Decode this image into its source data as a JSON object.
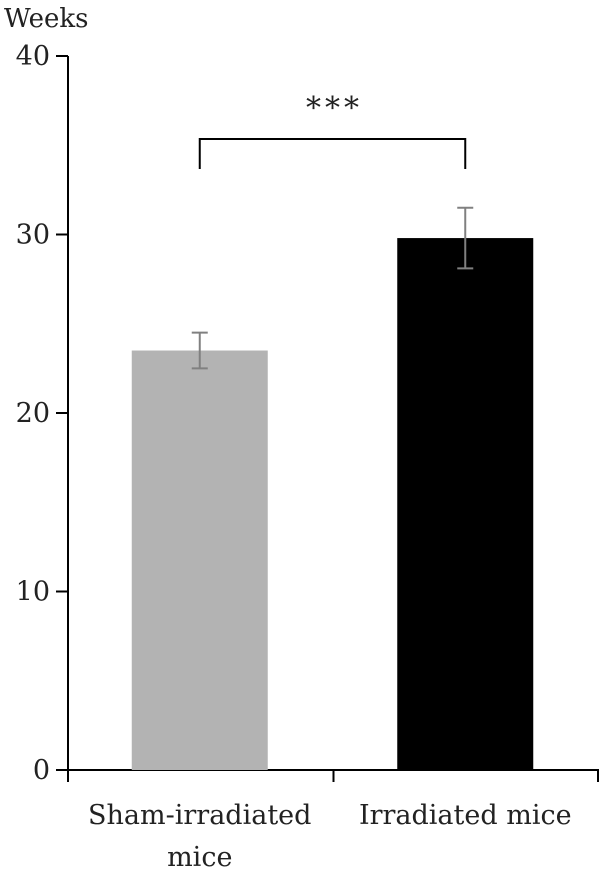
{
  "chart_data": {
    "type": "bar",
    "ylabel": "Weeks",
    "xlabel": "",
    "ylim": [
      0,
      40
    ],
    "yticks": [
      0,
      10,
      20,
      30,
      40
    ],
    "categories": [
      "Sham-irradiated mice",
      "Irradiated mice"
    ],
    "category_lines": [
      [
        "Sham-irradiated",
        "mice"
      ],
      [
        "Irradiated mice"
      ]
    ],
    "values": [
      23.5,
      29.8
    ],
    "errors": [
      1.0,
      1.7
    ],
    "colors": [
      "#b3b3b3",
      "#000000"
    ],
    "error_color": "#808080",
    "significance": "***",
    "grid": false
  }
}
